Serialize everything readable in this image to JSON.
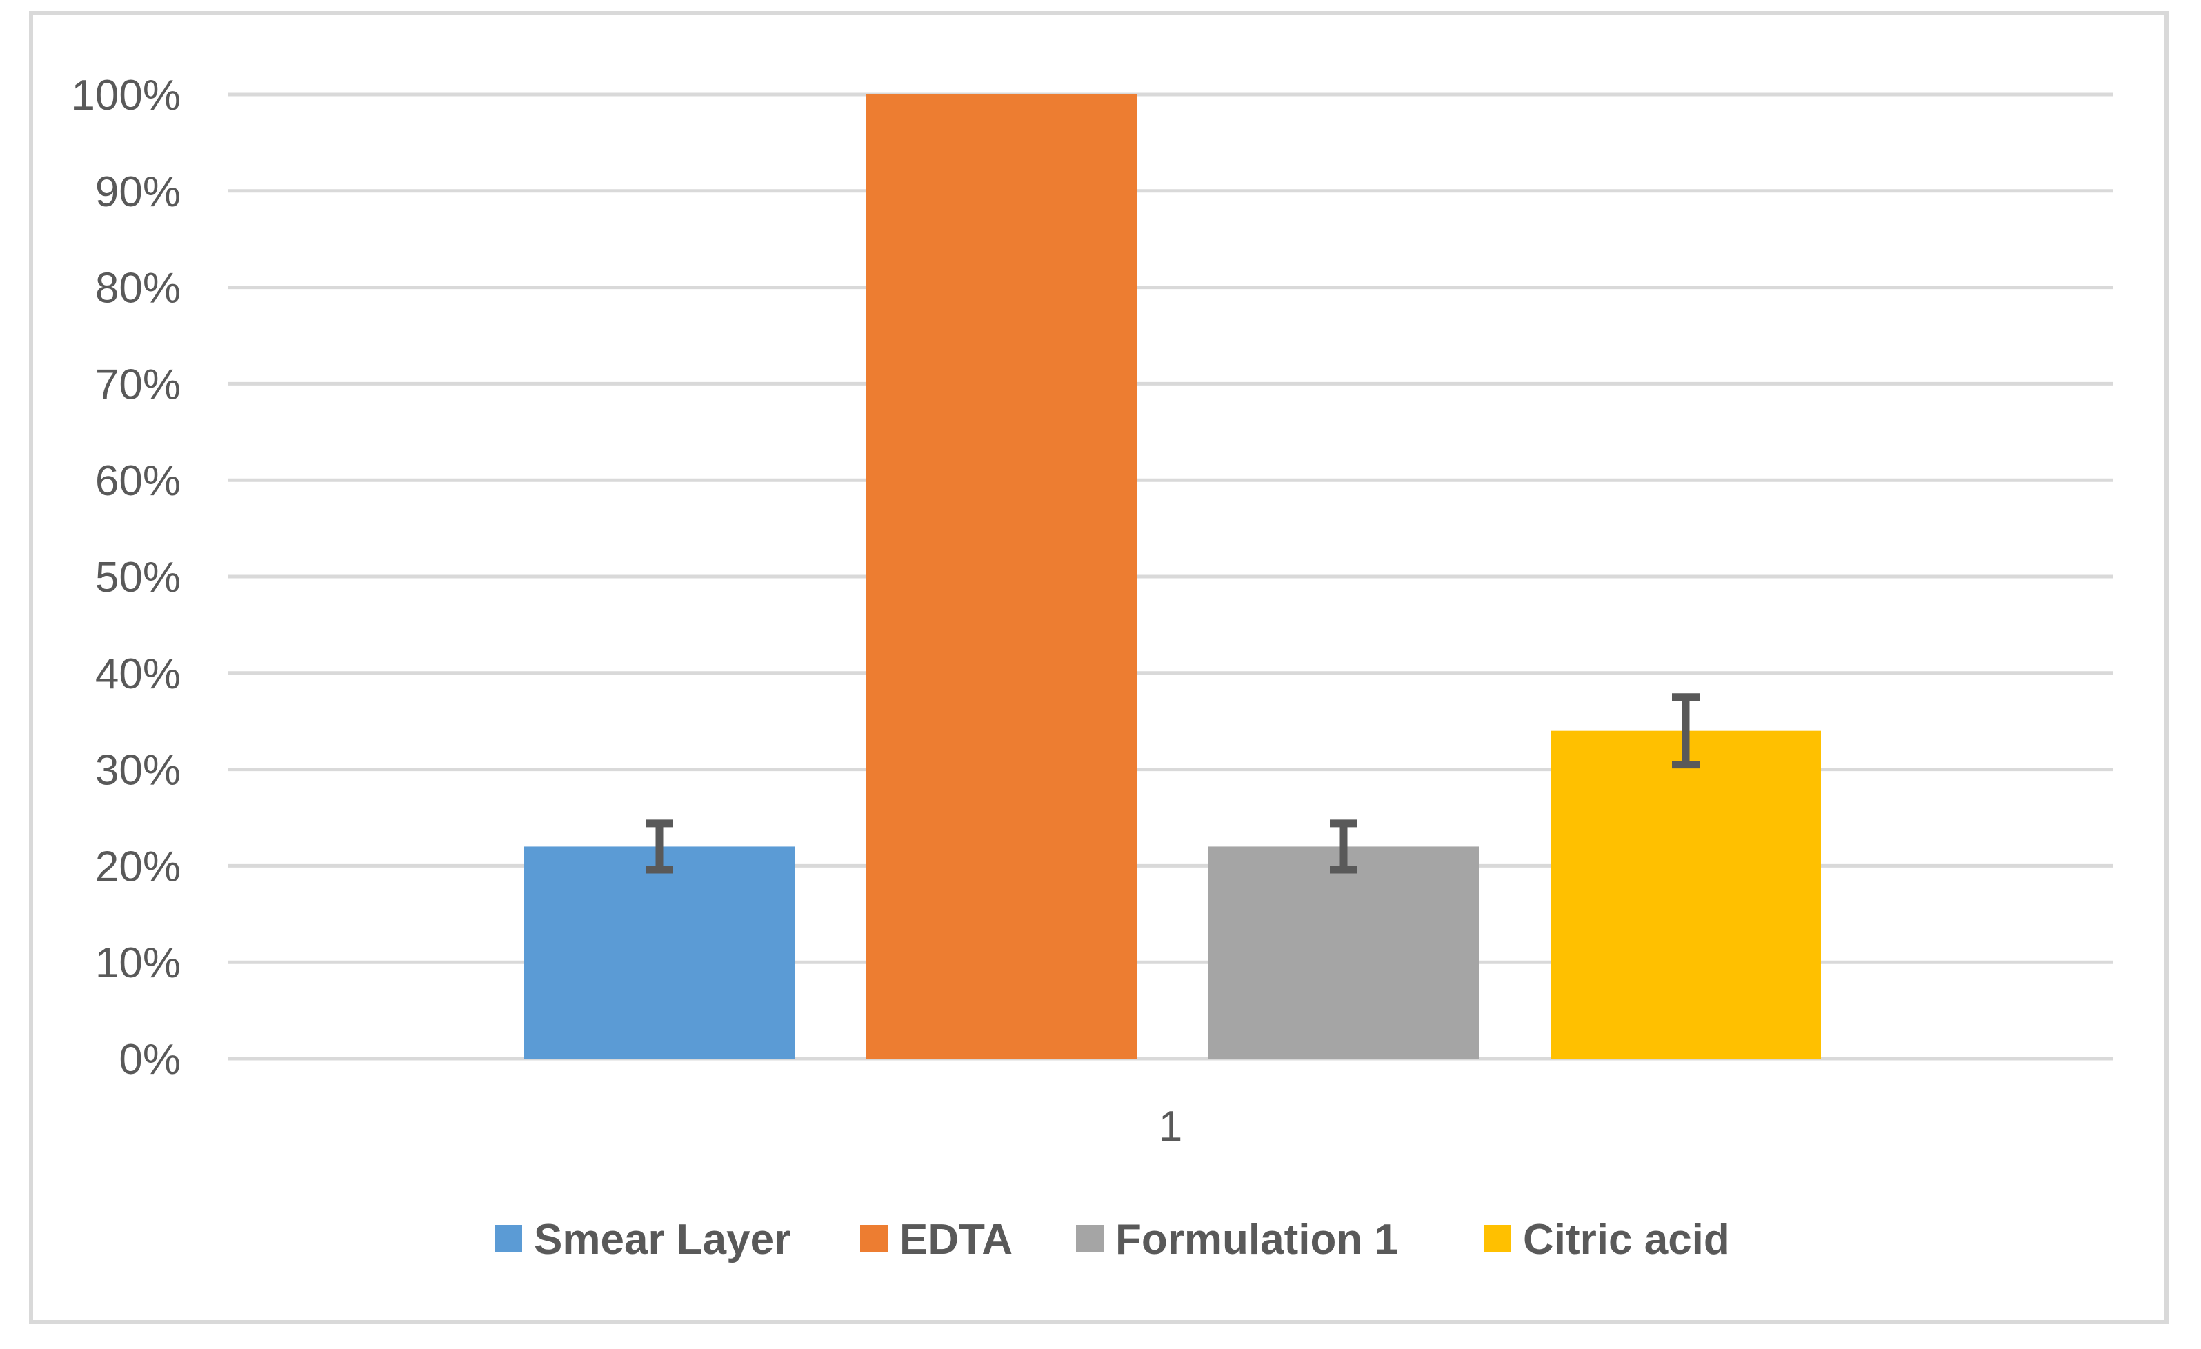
{
  "chart_data": {
    "type": "bar",
    "title": "",
    "xlabel": "",
    "ylabel": "",
    "categories": [
      "1"
    ],
    "ylim": [
      0,
      1
    ],
    "y_ticks": [
      "0%",
      "10%",
      "20%",
      "30%",
      "40%",
      "50%",
      "60%",
      "70%",
      "80%",
      "90%",
      "100%"
    ],
    "grid": true,
    "legend_position": "bottom",
    "series": [
      {
        "name": "Smear Layer",
        "values": [
          0.22
        ],
        "error": [
          0.024
        ],
        "color": "#5b9bd5"
      },
      {
        "name": "EDTA",
        "values": [
          1.0
        ],
        "error": [
          0
        ],
        "color": "#ed7d31"
      },
      {
        "name": "Formulation 1",
        "values": [
          0.22
        ],
        "error": [
          0.024
        ],
        "color": "#a5a5a5"
      },
      {
        "name": "Citric acid",
        "values": [
          0.34
        ],
        "error": [
          0.035
        ],
        "color": "#ffc000"
      }
    ],
    "colors": {
      "gridline": "#d9d9d9",
      "axis_text": "#595959",
      "error_bar": "#595959"
    }
  }
}
